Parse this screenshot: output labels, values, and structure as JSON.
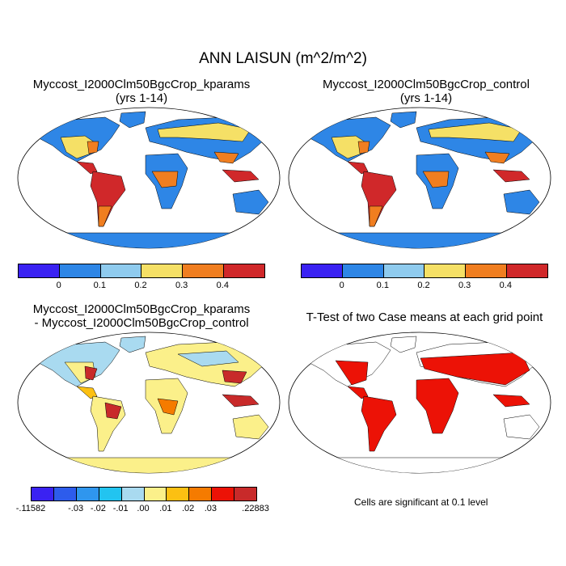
{
  "title": "ANN LAISUN (m^2/m^2)",
  "panels": {
    "p1": {
      "line1": "Myccost_I2000Clm50BgcCrop_kparams",
      "line2": "(yrs 1-14)"
    },
    "p2": {
      "line1": "Myccost_I2000Clm50BgcCrop_control",
      "line2": "(yrs 1-14)"
    },
    "p3": {
      "line1": "Myccost_I2000Clm50BgcCrop_kparams",
      "line2": "- Myccost_I2000Clm50BgcCrop_control"
    },
    "p4": {
      "line1": "T-Test of two Case means at each grid point"
    }
  },
  "colorbar1": {
    "colors": [
      "#3a22f2",
      "#2e86e6",
      "#8fcbee",
      "#f5e066",
      "#f07e20",
      "#d0282a"
    ],
    "ticks": [
      "0",
      "0.1",
      "0.2",
      "0.3",
      "0.4"
    ]
  },
  "colorbar2": {
    "colors": [
      "#3a22f2",
      "#2d5cec",
      "#2f96ee",
      "#22c4f0",
      "#a9daf0",
      "#fbf08a",
      "#fcc012",
      "#f57b00",
      "#ec1206",
      "#c82a2a"
    ],
    "ticks": [
      "-.11582",
      "-.03",
      "-.02",
      "-.01",
      ".00",
      ".01",
      ".02",
      ".03",
      ".22883"
    ]
  },
  "note": "Cells are significant at 0.1 level"
}
